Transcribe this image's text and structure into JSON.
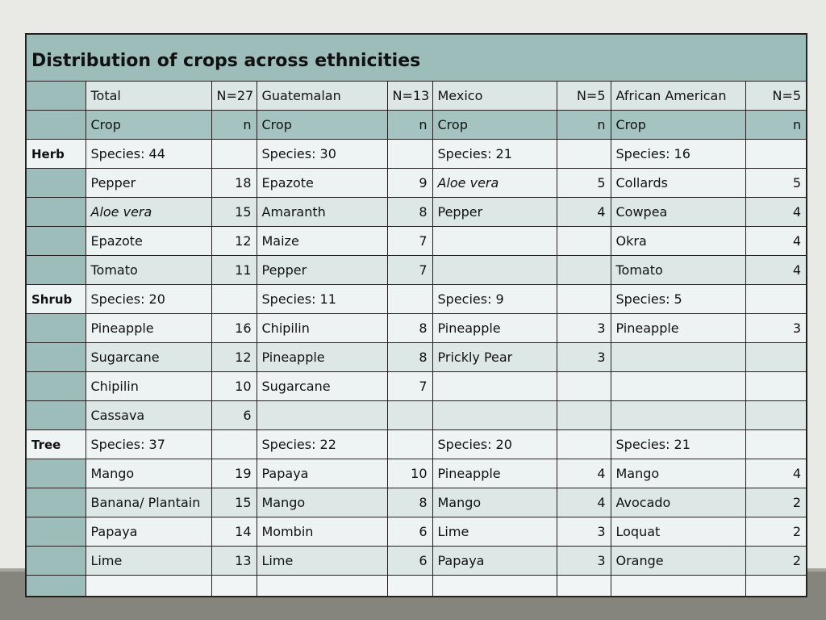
{
  "table": {
    "title": "Distribution of crops across ethnicities",
    "rows": [
      [
        null,
        "Total",
        "N=27",
        "Guatemalan",
        "N=13",
        "Mexico",
        "N=5",
        "African American",
        "N=5"
      ],
      [
        null,
        "Crop",
        "n",
        "Crop",
        "n",
        "Crop",
        "n",
        "Crop",
        "n"
      ],
      [
        "Herb",
        "Species: 44",
        null,
        "Species: 30",
        null,
        "Species: 21",
        null,
        "Species: 16",
        null
      ],
      [
        null,
        "Pepper",
        18,
        "Epazote",
        9,
        "Aloe vera",
        5,
        "Collards",
        5
      ],
      [
        null,
        "Aloe vera",
        15,
        "Amaranth",
        8,
        "Pepper",
        4,
        "Cowpea",
        4
      ],
      [
        null,
        "Epazote",
        12,
        "Maize",
        7,
        null,
        null,
        "Okra",
        4
      ],
      [
        null,
        "Tomato",
        11,
        "Pepper",
        7,
        null,
        null,
        "Tomato",
        4
      ],
      [
        "Shrub",
        "Species: 20",
        null,
        "Species: 11",
        null,
        "Species: 9",
        null,
        "Species: 5",
        null
      ],
      [
        null,
        "Pineapple",
        16,
        "Chipilin",
        8,
        "Pineapple",
        3,
        "Pineapple",
        3
      ],
      [
        null,
        "Sugarcane",
        12,
        "Pineapple",
        8,
        "Prickly Pear",
        3,
        null,
        null
      ],
      [
        null,
        "Chipilin",
        10,
        "Sugarcane",
        7,
        null,
        null,
        null,
        null
      ],
      [
        null,
        "Cassava",
        6,
        null,
        null,
        null,
        null,
        null,
        null
      ],
      [
        "Tree",
        "Species: 37",
        null,
        "Species: 22",
        null,
        "Species: 20",
        null,
        "Species: 21",
        null
      ],
      [
        null,
        "Mango",
        19,
        "Papaya",
        10,
        "Pineapple",
        4,
        "Mango",
        4
      ],
      [
        null,
        "Banana/ Plantain",
        15,
        "Mango",
        8,
        "Mango",
        4,
        "Avocado",
        2
      ],
      [
        null,
        "Papaya",
        14,
        "Mombin",
        6,
        "Lime",
        3,
        "Loquat",
        2
      ],
      [
        null,
        "Lime",
        13,
        "Lime",
        6,
        "Papaya",
        3,
        "Orange",
        2
      ],
      [
        null,
        null,
        null,
        null,
        null,
        null,
        null,
        null,
        null
      ]
    ],
    "italic": [
      "table.rows.3.5",
      "table.rows.4.1"
    ]
  }
}
